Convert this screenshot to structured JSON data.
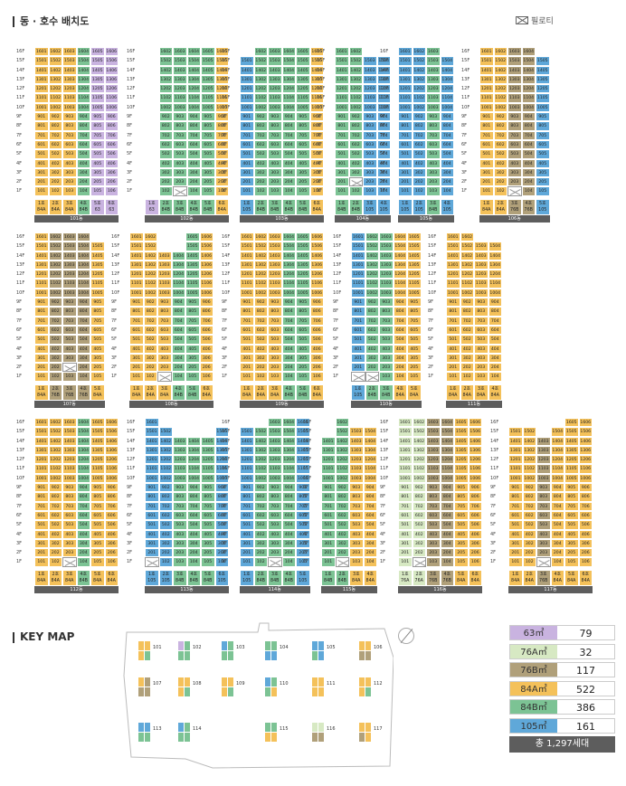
{
  "headers": {
    "section1": "동 · 호수 배치도",
    "section2": "KEY MAP"
  },
  "pilot_label": "필로티",
  "colors": {
    "63": "#c9b3e0",
    "76A": "#d7e9c3",
    "76B": "#b0a07a",
    "84A": "#f4c15a",
    "84B": "#7cc394",
    "105": "#5fa8d9"
  },
  "legend": [
    {
      "type": "63㎡",
      "count": "79",
      "color": "#c9b3e0"
    },
    {
      "type": "76A㎡",
      "count": "32",
      "color": "#d7e9c3"
    },
    {
      "type": "76B㎡",
      "count": "117",
      "color": "#b0a07a"
    },
    {
      "type": "84A㎡",
      "count": "522",
      "color": "#f4c15a"
    },
    {
      "type": "84B㎡",
      "count": "386",
      "color": "#7cc394"
    },
    {
      "type": "105㎡",
      "count": "161",
      "color": "#5fa8d9"
    }
  ],
  "total": "총 1,297세대",
  "floor_labels": [
    "16F",
    "15F",
    "14F",
    "13F",
    "12F",
    "11F",
    "10F",
    "9F",
    "8F",
    "7F",
    "6F",
    "5F",
    "4F",
    "3F",
    "2F",
    "1F"
  ],
  "buildings": [
    {
      "name": "101동",
      "types": [
        "84A",
        "84A",
        "84A",
        "84B",
        "63",
        "63"
      ],
      "tops": [
        16,
        16,
        16,
        16,
        16,
        16
      ],
      "pil": []
    },
    {
      "name": "102동",
      "types": [
        "63",
        "84B",
        "84B",
        "84B",
        "84B",
        "84A"
      ],
      "tops": [
        0,
        16,
        16,
        16,
        16,
        16
      ],
      "pil": [
        [
          1,
          3
        ]
      ]
    },
    {
      "name": "103동",
      "types": [
        "105",
        "84B",
        "84B",
        "84B",
        "84B",
        "84A"
      ],
      "tops": [
        15,
        16,
        16,
        16,
        16,
        16
      ],
      "pil": []
    },
    {
      "name": "104동",
      "types": [
        "84B",
        "84B",
        "105",
        "105"
      ],
      "tops": [
        16,
        16,
        15,
        15
      ],
      "pil": [
        [
          2,
          2
        ]
      ]
    },
    {
      "name": "105동",
      "types": [
        "105",
        "105",
        "84B",
        "105"
      ],
      "tops": [
        16,
        16,
        16,
        15
      ],
      "pil": []
    },
    {
      "name": "106동",
      "types": [
        "84A",
        "84A",
        "76B",
        "76B",
        "105"
      ],
      "tops": [
        16,
        16,
        16,
        16,
        15
      ],
      "pil": [
        [
          1,
          3
        ]
      ]
    },
    {
      "name": "107동",
      "types": [
        "84A",
        "76B",
        "76B",
        "76B",
        "84A"
      ],
      "tops": [
        16,
        16,
        16,
        16,
        15
      ],
      "pil": [
        [
          2,
          3
        ]
      ]
    },
    {
      "name": "108동",
      "types": [
        "84A",
        "84A",
        "84A",
        "84B",
        "84B",
        "84A"
      ],
      "tops": [
        16,
        16,
        14,
        14,
        16,
        16
      ],
      "pil": [
        [
          1,
          3
        ]
      ]
    },
    {
      "name": "109동",
      "types": [
        "84A",
        "84A",
        "84A",
        "84B",
        "84B",
        "84A"
      ],
      "tops": [
        16,
        16,
        16,
        16,
        16,
        16
      ],
      "pil": []
    },
    {
      "name": "110동",
      "types": [
        "105",
        "84B",
        "84B",
        "84A",
        "84A"
      ],
      "tops": [
        16,
        16,
        16,
        16,
        16
      ],
      "pil": [
        [
          1,
          1
        ],
        [
          1,
          2
        ]
      ]
    },
    {
      "name": "111동",
      "types": [
        "84A",
        "84A",
        "84A",
        "84A"
      ],
      "tops": [
        16,
        16,
        15,
        15
      ],
      "pil": []
    },
    {
      "name": "112동",
      "types": [
        "84A",
        "84A",
        "84A",
        "84B",
        "84A",
        "84A"
      ],
      "tops": [
        16,
        16,
        16,
        16,
        16,
        16
      ],
      "pil": [
        [
          1,
          3
        ]
      ]
    },
    {
      "name": "113동",
      "types": [
        "105",
        "105",
        "84B",
        "84B",
        "84B",
        "105"
      ],
      "tops": [
        16,
        15,
        14,
        14,
        14,
        15
      ],
      "pil": [
        [
          1,
          1
        ]
      ]
    },
    {
      "name": "114동",
      "types": [
        "105",
        "84B",
        "84B",
        "84B",
        "105"
      ],
      "tops": [
        15,
        15,
        16,
        16,
        16
      ],
      "pil": [
        [
          1,
          3
        ]
      ]
    },
    {
      "name": "115동",
      "types": [
        "84B",
        "84B",
        "84A",
        "84A"
      ],
      "tops": [
        14,
        16,
        15,
        15
      ],
      "pil": [
        [
          1,
          2
        ]
      ]
    },
    {
      "name": "116동",
      "types": [
        "76A",
        "76A",
        "76B",
        "76B",
        "84A",
        "84A"
      ],
      "tops": [
        16,
        16,
        16,
        16,
        16,
        16
      ],
      "pil": [
        [
          1,
          2
        ]
      ]
    },
    {
      "name": "117동",
      "types": [
        "84A",
        "84A",
        "76B",
        "84A",
        "84A",
        "84A"
      ],
      "tops": [
        15,
        15,
        14,
        15,
        16,
        16
      ],
      "pil": [
        [
          1,
          3
        ]
      ]
    }
  ]
}
